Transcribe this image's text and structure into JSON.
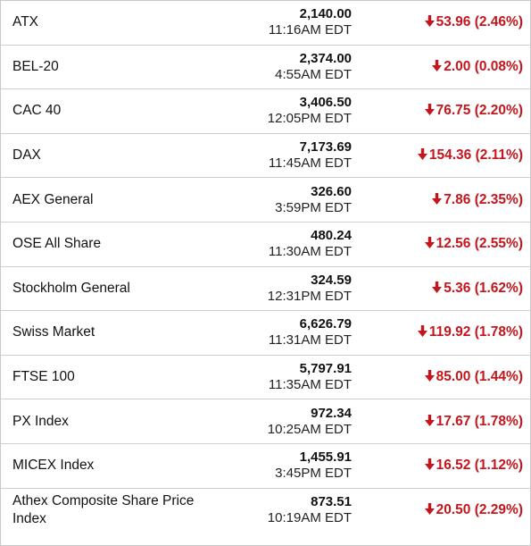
{
  "colors": {
    "down": "#c4161c",
    "text": "#111111",
    "divider": "#cfcfcf"
  },
  "indices": [
    {
      "name": "ATX",
      "value": "2,140.00",
      "time": "11:16AM EDT",
      "change": "53.96 (2.46%)",
      "direction": "down"
    },
    {
      "name": "BEL-20",
      "value": "2,374.00",
      "time": "4:55AM EDT",
      "change": "2.00 (0.08%)",
      "direction": "down"
    },
    {
      "name": "CAC 40",
      "value": "3,406.50",
      "time": "12:05PM EDT",
      "change": "76.75 (2.20%)",
      "direction": "down"
    },
    {
      "name": "DAX",
      "value": "7,173.69",
      "time": "11:45AM EDT",
      "change": "154.36 (2.11%)",
      "direction": "down"
    },
    {
      "name": "AEX General",
      "value": "326.60",
      "time": "3:59PM EDT",
      "change": "7.86 (2.35%)",
      "direction": "down"
    },
    {
      "name": "OSE All Share",
      "value": "480.24",
      "time": "11:30AM EDT",
      "change": "12.56 (2.55%)",
      "direction": "down"
    },
    {
      "name": "Stockholm General",
      "value": "324.59",
      "time": "12:31PM EDT",
      "change": "5.36 (1.62%)",
      "direction": "down"
    },
    {
      "name": "Swiss Market",
      "value": "6,626.79",
      "time": "11:31AM EDT",
      "change": "119.92 (1.78%)",
      "direction": "down"
    },
    {
      "name": "FTSE 100",
      "value": "5,797.91",
      "time": "11:35AM EDT",
      "change": "85.00 (1.44%)",
      "direction": "down"
    },
    {
      "name": "PX Index",
      "value": "972.34",
      "time": "10:25AM EDT",
      "change": "17.67 (1.78%)",
      "direction": "down"
    },
    {
      "name": "MICEX Index",
      "value": "1,455.91",
      "time": "3:45PM EDT",
      "change": "16.52 (1.12%)",
      "direction": "down"
    },
    {
      "name": "Athex Composite Share Price Index",
      "value": "873.51",
      "time": "10:19AM EDT",
      "change": "20.50 (2.29%)",
      "direction": "down"
    }
  ]
}
